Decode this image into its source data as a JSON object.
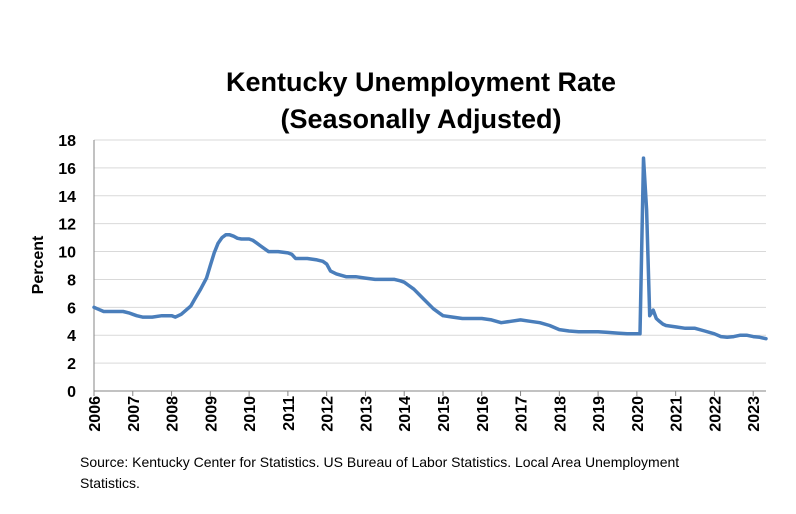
{
  "chart_data": {
    "type": "line",
    "title_line1": "Kentucky Unemployment Rate",
    "title_line2": "(Seasonally Adjusted)",
    "ylabel": "Percent",
    "xlabel": "",
    "ylim": [
      0,
      18
    ],
    "xlim": [
      2006.0,
      2023.33
    ],
    "y_ticks": [
      0,
      2,
      4,
      6,
      8,
      10,
      12,
      14,
      16,
      18
    ],
    "x_ticks": [
      "2006",
      "2007",
      "2008",
      "2009",
      "2010",
      "2011",
      "2012",
      "2013",
      "2014",
      "2015",
      "2016",
      "2017",
      "2018",
      "2019",
      "2020",
      "2021",
      "2022",
      "2023"
    ],
    "grid": true,
    "legend": "none",
    "line_color": "#4A7EBB",
    "series": [
      {
        "x": [
          2006.0,
          2006.08,
          2006.25,
          2006.5,
          2006.75,
          2006.9,
          2007.0,
          2007.1,
          2007.25,
          2007.5,
          2007.75,
          2008.0,
          2008.1,
          2008.25,
          2008.5,
          2008.6,
          2008.75,
          2008.9,
          2009.0,
          2009.1,
          2009.2,
          2009.3,
          2009.4,
          2009.5,
          2009.6,
          2009.7,
          2009.8,
          2010.0,
          2010.1,
          2010.2,
          2010.3,
          2010.5,
          2010.75,
          2011.0,
          2011.1,
          2011.2,
          2011.5,
          2011.75,
          2011.9,
          2012.0,
          2012.1,
          2012.25,
          2012.5,
          2012.75,
          2013.0,
          2013.25,
          2013.5,
          2013.75,
          2013.9,
          2014.0,
          2014.1,
          2014.25,
          2014.5,
          2014.75,
          2014.9,
          2015.0,
          2015.25,
          2015.5,
          2015.75,
          2016.0,
          2016.25,
          2016.5,
          2016.75,
          2017.0,
          2017.25,
          2017.5,
          2017.75,
          2018.0,
          2018.25,
          2018.5,
          2018.75,
          2019.0,
          2019.25,
          2019.5,
          2019.75,
          2020.0,
          2020.08,
          2020.17,
          2020.25,
          2020.33,
          2020.42,
          2020.5,
          2020.58,
          2020.67,
          2020.75,
          2021.0,
          2021.25,
          2021.5,
          2021.75,
          2022.0,
          2022.17,
          2022.33,
          2022.5,
          2022.67,
          2022.83,
          2023.0,
          2023.17,
          2023.33
        ],
        "y": [
          6.0,
          5.9,
          5.7,
          5.7,
          5.7,
          5.6,
          5.5,
          5.4,
          5.3,
          5.3,
          5.4,
          5.4,
          5.3,
          5.5,
          6.1,
          6.6,
          7.3,
          8.1,
          9.0,
          9.9,
          10.6,
          11.0,
          11.2,
          11.2,
          11.1,
          10.95,
          10.9,
          10.9,
          10.8,
          10.6,
          10.4,
          10.0,
          10.0,
          9.9,
          9.8,
          9.5,
          9.5,
          9.4,
          9.3,
          9.1,
          8.6,
          8.4,
          8.2,
          8.2,
          8.1,
          8.0,
          8.0,
          8.0,
          7.9,
          7.8,
          7.6,
          7.3,
          6.6,
          5.9,
          5.6,
          5.4,
          5.3,
          5.2,
          5.2,
          5.2,
          5.1,
          4.9,
          5.0,
          5.1,
          5.0,
          4.9,
          4.7,
          4.4,
          4.3,
          4.25,
          4.25,
          4.25,
          4.2,
          4.15,
          4.1,
          4.1,
          4.1,
          16.7,
          13.0,
          5.4,
          5.8,
          5.2,
          5.0,
          4.8,
          4.7,
          4.6,
          4.5,
          4.5,
          4.3,
          4.1,
          3.9,
          3.85,
          3.9,
          4.0,
          4.0,
          3.9,
          3.85,
          3.75
        ]
      }
    ]
  },
  "source_note": "Source: Kentucky Center for Statistics. US Bureau of Labor Statistics. Local Area Unemployment Statistics."
}
